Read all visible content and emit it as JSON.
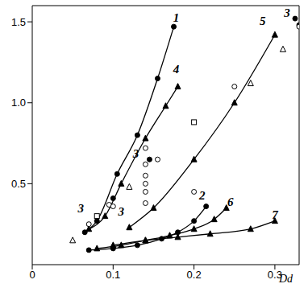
{
  "chart_data": {
    "type": "line",
    "x_label": "Dd",
    "xlim": [
      0,
      0.33
    ],
    "ylim": [
      0,
      1.6
    ],
    "xticks": [
      0,
      0.1,
      0.2,
      0.3
    ],
    "yticks": [
      {
        "value": 0.5,
        "label": "0.5"
      },
      {
        "value": 1,
        "label": "1.0"
      },
      {
        "value": 1.5,
        "label": "1.5"
      }
    ],
    "grid": false,
    "series": [
      {
        "type": "line",
        "marker": "circle_filled",
        "line_style": "solid",
        "color": "#000000",
        "x": [
          0.065,
          0.08,
          0.105,
          0.13,
          0.155,
          0.175
        ],
        "values": [
          0.2,
          0.27,
          0.56,
          0.8,
          1.15,
          1.47
        ]
      },
      {
        "type": "line",
        "marker": "triangle_filled",
        "line_style": "solid",
        "color": "#000000",
        "x": [
          0.07,
          0.09,
          0.11,
          0.14,
          0.165,
          0.18
        ],
        "values": [
          0.22,
          0.3,
          0.5,
          0.78,
          0.98,
          1.1
        ]
      },
      {
        "type": "line",
        "marker": "triangle_filled",
        "line_style": "solid",
        "color": "#000000",
        "x": [
          0.12,
          0.15,
          0.2,
          0.25,
          0.3
        ],
        "values": [
          0.23,
          0.35,
          0.65,
          1.0,
          1.42
        ]
      },
      {
        "type": "line",
        "marker": "circle_filled",
        "line_style": "solid",
        "color": "#000000",
        "x": [
          0.07,
          0.1,
          0.13,
          0.16,
          0.18,
          0.2,
          0.215
        ],
        "values": [
          0.09,
          0.1,
          0.12,
          0.16,
          0.2,
          0.27,
          0.36
        ]
      },
      {
        "type": "line",
        "marker": "triangle_filled",
        "line_style": "solid",
        "color": "#000000",
        "x": [
          0.08,
          0.11,
          0.14,
          0.17,
          0.2,
          0.225,
          0.24
        ],
        "values": [
          0.1,
          0.12,
          0.15,
          0.18,
          0.22,
          0.28,
          0.35
        ]
      },
      {
        "type": "line",
        "marker": "triangle_filled",
        "line_style": "solid",
        "color": "#000000",
        "x": [
          0.1,
          0.14,
          0.18,
          0.22,
          0.27,
          0.3
        ],
        "values": [
          0.12,
          0.15,
          0.17,
          0.19,
          0.22,
          0.27
        ]
      },
      {
        "type": "scatter",
        "marker": "circle_filled",
        "line_style": "none",
        "color": "#000000",
        "x": [
          0.1,
          0.145,
          0.325,
          0.33
        ],
        "values": [
          0.41,
          0.65,
          1.52,
          1.48
        ]
      },
      {
        "type": "scatter",
        "marker": "circle_open",
        "line_style": "none",
        "color": "#000000",
        "x": [
          0.07,
          0.095,
          0.1,
          0.14,
          0.14,
          0.14,
          0.14,
          0.14,
          0.14,
          0.155,
          0.2,
          0.25,
          0.33
        ],
        "values": [
          0.25,
          0.37,
          0.36,
          0.45,
          0.5,
          0.55,
          0.62,
          0.72,
          0.38,
          0.65,
          0.45,
          1.1,
          1.47
        ]
      },
      {
        "type": "scatter",
        "marker": "triangle_open",
        "line_style": "none",
        "color": "#000000",
        "x": [
          0.05,
          0.12,
          0.27,
          0.31
        ],
        "values": [
          0.15,
          0.48,
          1.12,
          1.33
        ]
      },
      {
        "type": "scatter",
        "marker": "square_open",
        "line_style": "none",
        "color": "#000000",
        "x": [
          0.08,
          0.2
        ],
        "values": [
          0.3,
          0.88
        ]
      }
    ],
    "annotations": [
      {
        "text": "1",
        "x": 0.178,
        "y": 1.52
      },
      {
        "text": "4",
        "x": 0.178,
        "y": 1.2
      },
      {
        "text": "5",
        "x": 0.285,
        "y": 1.5
      },
      {
        "text": "3",
        "x": 0.315,
        "y": 1.55
      },
      {
        "text": "2",
        "x": 0.21,
        "y": 0.42
      },
      {
        "text": "6",
        "x": 0.245,
        "y": 0.38
      },
      {
        "text": "7",
        "x": 0.3,
        "y": 0.3
      },
      {
        "text": "3",
        "x": 0.06,
        "y": 0.34
      },
      {
        "text": "3",
        "x": 0.11,
        "y": 0.32
      },
      {
        "text": "3",
        "x": 0.128,
        "y": 0.68
      }
    ]
  }
}
